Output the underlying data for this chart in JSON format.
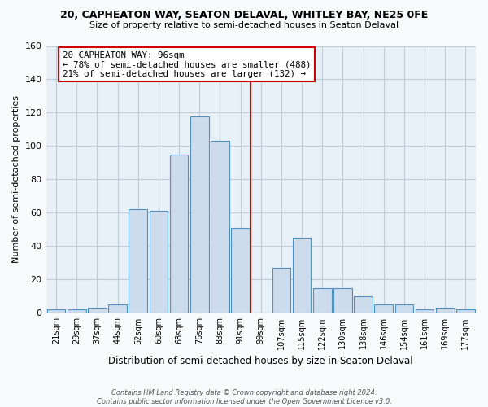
{
  "title_line1": "20, CAPHEATON WAY, SEATON DELAVAL, WHITLEY BAY, NE25 0FE",
  "title_line2": "Size of property relative to semi-detached houses in Seaton Delaval",
  "xlabel": "Distribution of semi-detached houses by size in Seaton Delaval",
  "ylabel": "Number of semi-detached properties",
  "bar_labels": [
    "21sqm",
    "29sqm",
    "37sqm",
    "44sqm",
    "52sqm",
    "60sqm",
    "68sqm",
    "76sqm",
    "83sqm",
    "91sqm",
    "99sqm",
    "107sqm",
    "115sqm",
    "122sqm",
    "130sqm",
    "138sqm",
    "146sqm",
    "154sqm",
    "161sqm",
    "169sqm",
    "177sqm"
  ],
  "bar_values": [
    2,
    2,
    3,
    5,
    62,
    61,
    95,
    118,
    103,
    51,
    0,
    27,
    45,
    15,
    15,
    10,
    5,
    5,
    2,
    3,
    2
  ],
  "bar_color": "#ccdcec",
  "bar_edge_color": "#5090c0",
  "vline_x": 9.5,
  "vline_color": "#cc0000",
  "annotation_title": "20 CAPHEATON WAY: 96sqm",
  "annotation_line1": "← 78% of semi-detached houses are smaller (488)",
  "annotation_line2": "21% of semi-detached houses are larger (132) →",
  "annotation_box_facecolor": "white",
  "annotation_box_edgecolor": "#cc0000",
  "ylim": [
    0,
    160
  ],
  "yticks": [
    0,
    20,
    40,
    60,
    80,
    100,
    120,
    140,
    160
  ],
  "plot_bg_color": "#e8f0f8",
  "fig_bg_color": "#f8fafc",
  "grid_color": "#c0ccd8",
  "footer_line1": "Contains HM Land Registry data © Crown copyright and database right 2024.",
  "footer_line2": "Contains public sector information licensed under the Open Government Licence v3.0."
}
